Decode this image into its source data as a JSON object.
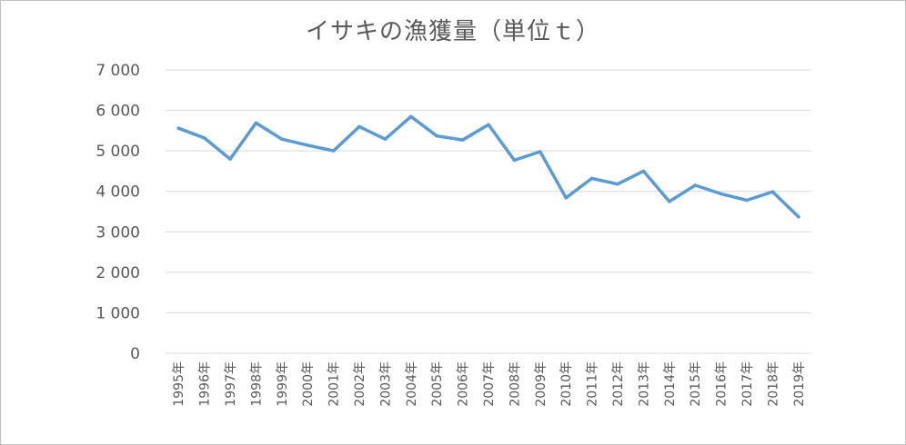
{
  "chart_data": {
    "type": "line",
    "title": "イサキの漁獲量（単位ｔ）",
    "xlabel": "",
    "ylabel": "",
    "ylim": [
      0,
      7000
    ],
    "yticks": [
      "0",
      "1 000",
      "2 000",
      "3 000",
      "4 000",
      "5 000",
      "6 000",
      "7 000"
    ],
    "ytick_values": [
      0,
      1000,
      2000,
      3000,
      4000,
      5000,
      6000,
      7000
    ],
    "categories": [
      "1995年",
      "1996年",
      "1997年",
      "1998年",
      "1999年",
      "2000年",
      "2001年",
      "2002年",
      "2003年",
      "2004年",
      "2005年",
      "2006年",
      "2007年",
      "2008年",
      "2009年",
      "2010年",
      "2011年",
      "2012年",
      "2013年",
      "2014年",
      "2015年",
      "2016年",
      "2017年",
      "2018年",
      "2019年"
    ],
    "series": [
      {
        "values": [
          5560,
          5320,
          4800,
          5690,
          5290,
          5140,
          5000,
          5600,
          5290,
          5850,
          5370,
          5270,
          5650,
          4770,
          4980,
          3840,
          4320,
          4180,
          4500,
          3750,
          4150,
          3940,
          3780,
          3990,
          3370
        ],
        "color": "#5b9bd5"
      }
    ],
    "grid": true,
    "legend": "none",
    "colors": {
      "line": "#5b9bd5",
      "grid": "#d9d9d9",
      "text": "#595959",
      "border": "#bfbfbf"
    }
  }
}
